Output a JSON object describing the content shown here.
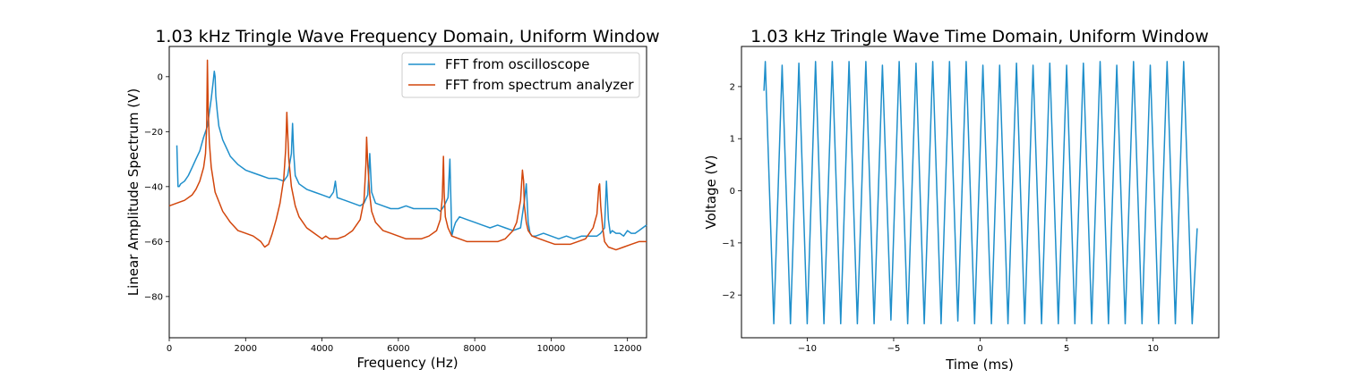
{
  "chart_data": [
    {
      "type": "line",
      "title": "1.03 kHz Tringle Wave Frequency Domain, Uniform Window",
      "xlabel": "Frequency (Hz)",
      "ylabel": "Linear Amplitude Spectrum (V)",
      "xlim": [
        0,
        12500
      ],
      "ylim": [
        -95,
        11
      ],
      "xticks": [
        0,
        2000,
        4000,
        6000,
        8000,
        10000,
        12000
      ],
      "xtick_labels": [
        "0",
        "2000",
        "4000",
        "6000",
        "8000",
        "10000",
        "12000"
      ],
      "yticks": [
        0,
        -20,
        -40,
        -60,
        -80
      ],
      "ytick_labels": [
        "0",
        "−20",
        "−40",
        "−60",
        "−80"
      ],
      "grid": false,
      "legend": "top-right",
      "series": [
        {
          "name": "FFT from oscilloscope",
          "color": "#1f8fcb",
          "x": [
            200,
            230,
            260,
            300,
            400,
            500,
            600,
            700,
            800,
            900,
            1000,
            1050,
            1100,
            1150,
            1180,
            1200,
            1220,
            1260,
            1300,
            1400,
            1500,
            1600,
            1800,
            2000,
            2200,
            2400,
            2600,
            2800,
            3000,
            3100,
            3150,
            3200,
            3230,
            3260,
            3300,
            3400,
            3600,
            3800,
            4000,
            4200,
            4300,
            4350,
            4400,
            4600,
            4800,
            5000,
            5100,
            5200,
            5250,
            5300,
            5400,
            5600,
            5800,
            6000,
            6200,
            6400,
            6600,
            6800,
            7000,
            7100,
            7200,
            7300,
            7350,
            7400,
            7450,
            7500,
            7600,
            7800,
            8000,
            8200,
            8400,
            8600,
            8800,
            9000,
            9200,
            9300,
            9350,
            9400,
            9450,
            9500,
            9600,
            9800,
            10000,
            10200,
            10400,
            10600,
            10800,
            11000,
            11200,
            11300,
            11400,
            11450,
            11500,
            11550,
            11600,
            11700,
            11800,
            11900,
            12000,
            12100,
            12200,
            12300,
            12400,
            12500
          ],
          "y": [
            -25,
            -40,
            -40,
            -39,
            -38,
            -36,
            -33,
            -30,
            -27,
            -22,
            -18,
            -13,
            -8,
            -2,
            2,
            0,
            -7,
            -13,
            -18,
            -23,
            -26,
            -29,
            -32,
            -34,
            -35,
            -36,
            -37,
            -37,
            -38,
            -36,
            -32,
            -28,
            -17,
            -28,
            -36,
            -39,
            -41,
            -42,
            -43,
            -44,
            -42,
            -38,
            -44,
            -45,
            -46,
            -47,
            -46,
            -43,
            -28,
            -42,
            -46,
            -47,
            -48,
            -48,
            -47,
            -48,
            -48,
            -48,
            -48,
            -49,
            -47,
            -44,
            -30,
            -58,
            -55,
            -53,
            -51,
            -52,
            -53,
            -54,
            -55,
            -54,
            -55,
            -56,
            -55,
            -45,
            -39,
            -53,
            -57,
            -58,
            -58,
            -57,
            -58,
            -59,
            -58,
            -59,
            -58,
            -58,
            -58,
            -57,
            -55,
            -38,
            -52,
            -57,
            -56,
            -57,
            -57,
            -58,
            -56,
            -57,
            -57,
            -56,
            -55,
            -54
          ]
        },
        {
          "name": "FFT from spectrum analyzer",
          "color": "#d2460c",
          "x": [
            0,
            200,
            400,
            600,
            700,
            800,
            900,
            950,
            980,
            1000,
            1020,
            1050,
            1100,
            1200,
            1400,
            1600,
            1800,
            2000,
            2200,
            2400,
            2500,
            2600,
            2700,
            2800,
            2900,
            3000,
            3050,
            3080,
            3100,
            3130,
            3200,
            3300,
            3400,
            3600,
            3800,
            4000,
            4100,
            4200,
            4400,
            4600,
            4800,
            5000,
            5100,
            5150,
            5170,
            5200,
            5250,
            5300,
            5400,
            5600,
            5800,
            6000,
            6200,
            6400,
            6600,
            6800,
            7000,
            7100,
            7150,
            7180,
            7200,
            7230,
            7300,
            7400,
            7600,
            7800,
            8000,
            8200,
            8400,
            8600,
            8800,
            9000,
            9100,
            9200,
            9250,
            9280,
            9300,
            9350,
            9400,
            9500,
            9700,
            9900,
            10100,
            10300,
            10500,
            10700,
            10900,
            11100,
            11200,
            11250,
            11270,
            11300,
            11350,
            11400,
            11500,
            11700,
            11900,
            12100,
            12300,
            12500
          ],
          "y": [
            -47,
            -46,
            -45,
            -43,
            -41,
            -38,
            -33,
            -28,
            -18,
            6,
            -12,
            -24,
            -33,
            -42,
            -49,
            -53,
            -56,
            -57,
            -58,
            -60,
            -62,
            -61,
            -57,
            -52,
            -46,
            -37,
            -26,
            -13,
            -20,
            -30,
            -40,
            -47,
            -51,
            -55,
            -57,
            -59,
            -58,
            -59,
            -59,
            -58,
            -56,
            -52,
            -45,
            -32,
            -22,
            -32,
            -43,
            -49,
            -53,
            -56,
            -57,
            -58,
            -59,
            -59,
            -59,
            -58,
            -56,
            -52,
            -44,
            -29,
            -42,
            -51,
            -55,
            -58,
            -59,
            -60,
            -60,
            -60,
            -60,
            -60,
            -59,
            -56,
            -53,
            -45,
            -34,
            -38,
            -47,
            -53,
            -56,
            -58,
            -59,
            -60,
            -61,
            -61,
            -61,
            -60,
            -59,
            -55,
            -50,
            -40,
            -39,
            -47,
            -55,
            -60,
            -62,
            -63,
            -62,
            -61,
            -60,
            -60
          ]
        }
      ]
    },
    {
      "type": "line",
      "title": "1.03 kHz Tringle Wave Time Domain, Uniform Window",
      "xlabel": "Time (ms)",
      "ylabel": "Voltage (V)",
      "xlim": [
        -13.8,
        13.8
      ],
      "ylim": [
        -2.82,
        2.77
      ],
      "xticks": [
        -10,
        -5,
        0,
        5,
        10
      ],
      "xtick_labels": [
        "−10",
        "−5",
        "0",
        "5",
        "10"
      ],
      "yticks": [
        2,
        1,
        0,
        -1,
        -2
      ],
      "ytick_labels": [
        "2",
        "1",
        "0",
        "−1",
        "−2"
      ],
      "grid": false,
      "series": [
        {
          "color": "#1f8fcb",
          "x": [
            -12.5,
            -12.42,
            -11.93,
            -11.45,
            -10.97,
            -10.48,
            -10.0,
            -9.52,
            -9.03,
            -8.55,
            -8.06,
            -7.58,
            -7.1,
            -6.61,
            -6.13,
            -5.65,
            -5.16,
            -4.68,
            -4.19,
            -3.71,
            -3.23,
            -2.74,
            -2.26,
            -1.77,
            -1.29,
            -0.81,
            -0.32,
            0.16,
            0.65,
            1.13,
            1.61,
            2.1,
            2.58,
            3.06,
            3.55,
            4.03,
            4.52,
            5.0,
            5.48,
            5.97,
            6.45,
            6.94,
            7.42,
            7.9,
            8.39,
            8.87,
            9.36,
            9.84,
            10.32,
            10.81,
            11.29,
            11.77,
            12.26,
            12.55
          ],
          "y": [
            1.92,
            2.48,
            -2.55,
            2.41,
            -2.55,
            2.45,
            -2.55,
            2.48,
            -2.55,
            2.48,
            -2.55,
            2.48,
            -2.55,
            2.48,
            -2.55,
            2.41,
            -2.48,
            2.48,
            -2.55,
            2.45,
            -2.55,
            2.48,
            -2.55,
            2.48,
            -2.5,
            2.48,
            -2.55,
            2.41,
            -2.55,
            2.41,
            -2.55,
            2.45,
            -2.55,
            2.41,
            -2.55,
            2.45,
            -2.55,
            2.41,
            -2.55,
            2.45,
            -2.55,
            2.48,
            -2.55,
            2.41,
            -2.55,
            2.48,
            -2.55,
            2.41,
            -2.55,
            2.48,
            -2.55,
            2.48,
            -2.55,
            -0.72
          ]
        }
      ]
    }
  ]
}
